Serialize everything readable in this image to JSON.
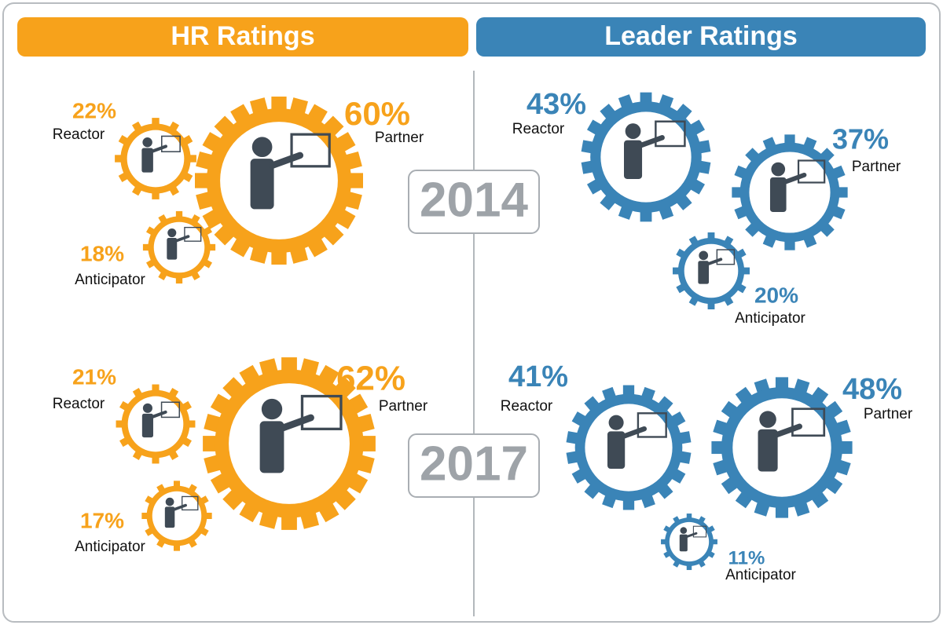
{
  "years": [
    "2014",
    "2017"
  ],
  "panels": [
    {
      "title": "HR Ratings",
      "color": "#f7a21b",
      "rows": [
        [
          {
            "label": "Partner",
            "value": 60,
            "value_label": "60%"
          },
          {
            "label": "Reactor",
            "value": 22,
            "value_label": "22%"
          },
          {
            "label": "Anticipator",
            "value": 18,
            "value_label": "18%"
          }
        ],
        [
          {
            "label": "Partner",
            "value": 62,
            "value_label": "62%"
          },
          {
            "label": "Reactor",
            "value": 21,
            "value_label": "21%"
          },
          {
            "label": "Anticipator",
            "value": 17,
            "value_label": "17%"
          }
        ]
      ]
    },
    {
      "title": "Leader Ratings",
      "color": "#3a84b7",
      "rows": [
        [
          {
            "label": "Reactor",
            "value": 43,
            "value_label": "43%"
          },
          {
            "label": "Partner",
            "value": 37,
            "value_label": "37%"
          },
          {
            "label": "Anticipator",
            "value": 20,
            "value_label": "20%"
          }
        ],
        [
          {
            "label": "Reactor",
            "value": 41,
            "value_label": "41%"
          },
          {
            "label": "Partner",
            "value": 48,
            "value_label": "48%"
          },
          {
            "label": "Anticipator",
            "value": 11,
            "value_label": "11%"
          }
        ]
      ]
    }
  ]
}
